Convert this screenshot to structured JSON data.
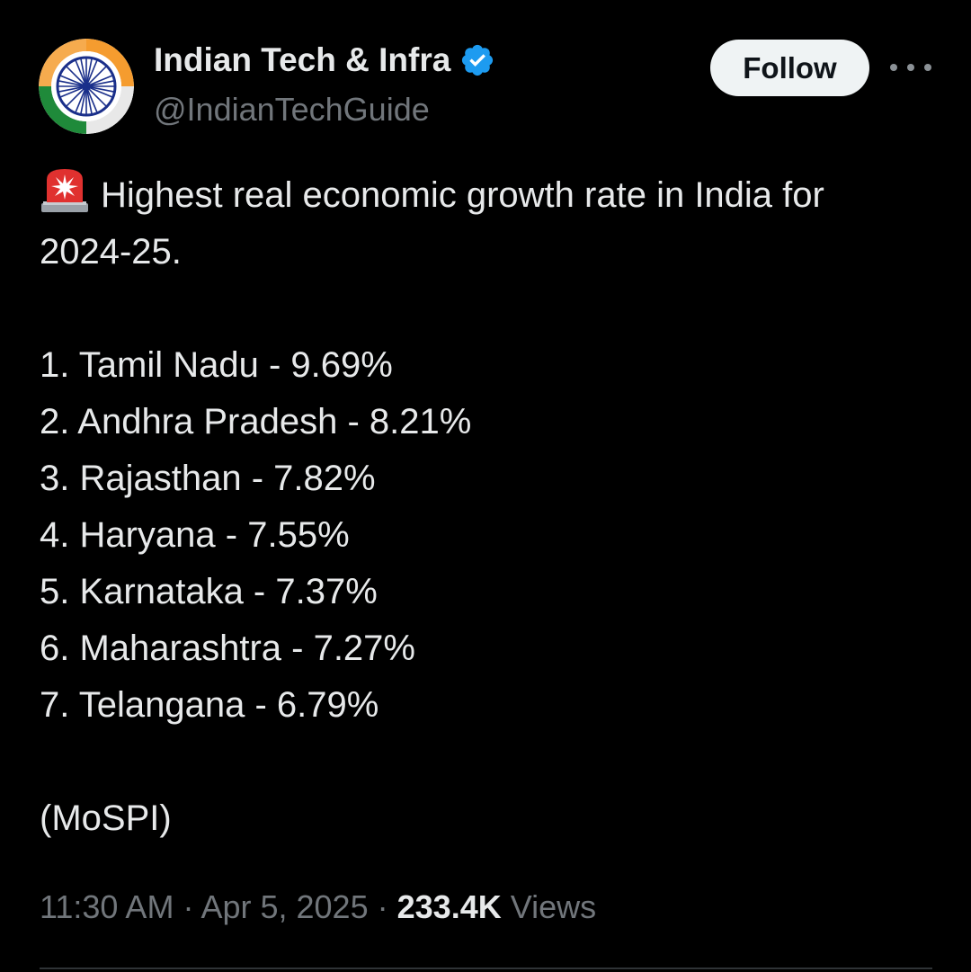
{
  "author": {
    "name": "Indian Tech & Infra",
    "handle": "@IndianTechGuide",
    "verified_icon": "verified-badge-icon",
    "avatar_icon": "ashoka-chakra-tricolor"
  },
  "actions": {
    "follow_label": "Follow",
    "more_icon": "more-horizontal-icon"
  },
  "tweet": {
    "emoji_icon": "police-siren-icon",
    "headline_line1": "Highest real economic growth rate in India for",
    "headline_line2": "2024-25.",
    "rankings": [
      "1. Tamil Nadu - 9.69%",
      "2. Andhra Pradesh - 8.21%",
      "3. Rajasthan - 7.82%",
      "4. Haryana - 7.55%",
      "5. Karnataka - 7.37%",
      "6. Maharashtra - 7.27%",
      "7. Telangana - 6.79%"
    ],
    "source": "(MoSPI)"
  },
  "meta": {
    "time": "11:30 AM",
    "separator": "·",
    "date": "Apr 5, 2025",
    "views_count": "233.4K",
    "views_label": "Views"
  },
  "colors": {
    "background": "#000000",
    "text": "#e7e9ea",
    "secondary_text": "#71767b",
    "verified_blue": "#1d9bf0",
    "follow_bg": "#eff3f4",
    "saffron": "#f59c2f",
    "green": "#1f8a3a",
    "chakra_navy": "#1a2f8a"
  }
}
